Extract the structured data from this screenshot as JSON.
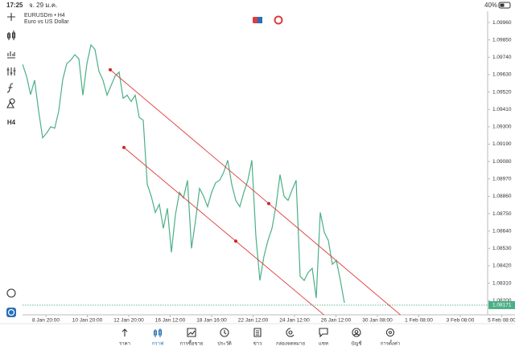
{
  "status_bar": {
    "time": "17:25",
    "date": "จ. 29 ม.ค.",
    "battery": "40%"
  },
  "toolbar": {
    "timeframe": "H4"
  },
  "chart_data": {
    "type": "line",
    "title": "EURUSDm • H4",
    "subtitle": "Euro vs US Dollar",
    "x": [
      0,
      1,
      2,
      3,
      4,
      5,
      6,
      7,
      8,
      9,
      10,
      11,
      12,
      13,
      14,
      15,
      16,
      17,
      18,
      19,
      20,
      21,
      22,
      23,
      24,
      25,
      26,
      27,
      28,
      29,
      30,
      31,
      32,
      33,
      34,
      35,
      36,
      37,
      38,
      39,
      40,
      41,
      42,
      43,
      44,
      45,
      46,
      47,
      48,
      49,
      50,
      51,
      52,
      53,
      54,
      55,
      56,
      57,
      58,
      59,
      60,
      61,
      62,
      63,
      64,
      65,
      66,
      67,
      68,
      69,
      70,
      71,
      72,
      73,
      74,
      75,
      76,
      77,
      78,
      79,
      80
    ],
    "series": [
      {
        "color": "#4caf86",
        "values": [
          1.09696,
          1.0962,
          1.09504,
          1.09595,
          1.094,
          1.0923,
          1.0926,
          1.093,
          1.09291,
          1.094,
          1.096,
          1.097,
          1.09722,
          1.09757,
          1.0973,
          1.095,
          1.097,
          1.09818,
          1.0979,
          1.0965,
          1.09595,
          1.095,
          1.0956,
          1.0962,
          1.09646,
          1.0948,
          1.095,
          1.0946,
          1.095,
          1.0936,
          1.09341,
          1.08936,
          1.0886,
          1.08758,
          1.08809,
          1.08657,
          1.08784,
          1.08505,
          1.08743,
          1.08885,
          1.0885,
          1.08961,
          1.0853,
          1.08708,
          1.0891,
          1.0886,
          1.08794,
          1.08885,
          1.08946,
          1.08961,
          1.09012,
          1.09088,
          1.08936,
          1.08834,
          1.08794,
          1.08885,
          1.08961,
          1.09088,
          1.08606,
          1.08327,
          1.0848,
          1.08581,
          1.08657,
          1.088,
          1.08997,
          1.0886,
          1.08834,
          1.089,
          1.08961,
          1.08353,
          1.08327,
          1.08378,
          1.08404,
          1.08216,
          1.08758,
          1.08632,
          1.08581,
          1.08429,
          1.08454,
          1.08327,
          1.08185
        ]
      }
    ],
    "current_price": 1.08171,
    "trendlines": [
      {
        "color": "#e03c3c",
        "x": [
          21.8,
          61.2,
          94.4
        ],
        "y": [
          1.09661,
          1.08814,
          1.08099
        ]
      },
      {
        "color": "#e03c3c",
        "x": [
          25.2,
          53,
          75.4
        ],
        "y": [
          1.09169,
          1.08576,
          1.08099
        ]
      }
    ],
    "xlim": [
      0,
      120
    ],
    "xticks": [
      {
        "value": 5.8,
        "label": "8 Jan 20:00"
      },
      {
        "value": 16.1,
        "label": "10 Jan 20:00"
      },
      {
        "value": 26.4,
        "label": "12 Jan 20:00"
      },
      {
        "value": 36.7,
        "label": "16 Jan 12:00"
      },
      {
        "value": 47,
        "label": "18 Jan 16:00"
      },
      {
        "value": 57.3,
        "label": "22 Jan 12:00"
      },
      {
        "value": 67.6,
        "label": "24 Jan 12:00"
      },
      {
        "value": 77.9,
        "label": "26 Jan 12:00"
      },
      {
        "value": 88.2,
        "label": "30 Jan 08:00"
      },
      {
        "value": 98.5,
        "label": "1 Feb 08:00"
      },
      {
        "value": 108.8,
        "label": "3 Feb 08:00"
      },
      {
        "value": 119.1,
        "label": "5 Feb 08:00"
      }
    ],
    "ylim": [
      1.0813,
      1.10011
    ],
    "yticks": [
      {
        "value": 1.0996,
        "label": "1.09960"
      },
      {
        "value": 1.0985,
        "label": "1.09850"
      },
      {
        "value": 1.0974,
        "label": "1.09740"
      },
      {
        "value": 1.0963,
        "label": "1.09630"
      },
      {
        "value": 1.0952,
        "label": "1.09520"
      },
      {
        "value": 1.0941,
        "label": "1.09410"
      },
      {
        "value": 1.093,
        "label": "1.09300"
      },
      {
        "value": 1.0919,
        "label": "1.09190"
      },
      {
        "value": 1.0908,
        "label": "1.09080"
      },
      {
        "value": 1.0897,
        "label": "1.08970"
      },
      {
        "value": 1.0886,
        "label": "1.08860"
      },
      {
        "value": 1.0875,
        "label": "1.08750"
      },
      {
        "value": 1.0864,
        "label": "1.08640"
      },
      {
        "value": 1.0853,
        "label": "1.08530"
      },
      {
        "value": 1.0842,
        "label": "1.08420"
      },
      {
        "value": 1.0831,
        "label": "1.08310"
      },
      {
        "value": 1.082,
        "label": "1.08200"
      }
    ]
  },
  "nav": {
    "items": [
      "ราคา",
      "กราฟ",
      "การซื้อขาย",
      "ประวัติ",
      "ข่าว",
      "กล่องจดหมาย",
      "แชท",
      "บัญชี",
      "การตั้งค่า"
    ],
    "active": 1
  }
}
